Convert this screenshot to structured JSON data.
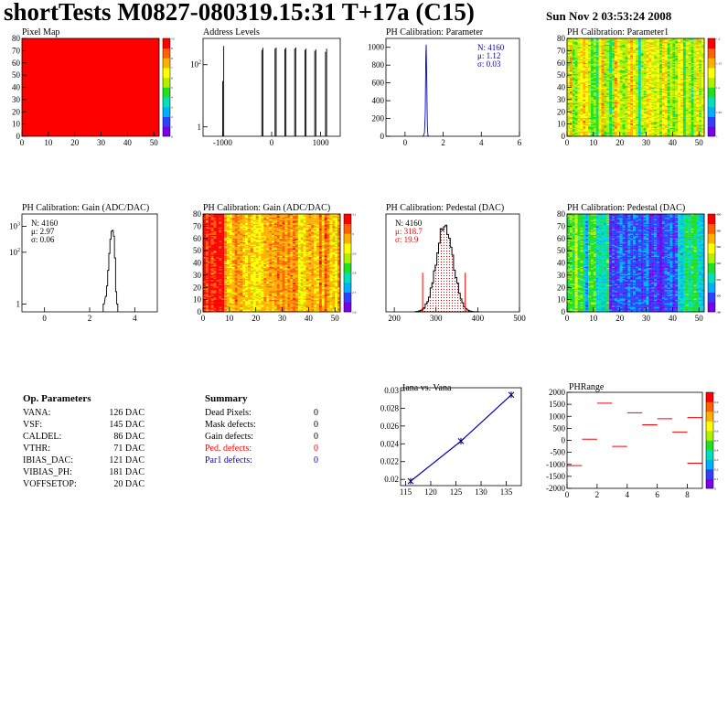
{
  "header": {
    "title": "shortTests M0827-080319.15:31 T+17a (C15)",
    "date": "Sun Nov  2 03:53:24 2008"
  },
  "colors": {
    "blue": "#0000cc",
    "red": "#ff0000",
    "palette": [
      "#7a00e8",
      "#3040ff",
      "#00b0ff",
      "#00e0c0",
      "#20e020",
      "#b0f000",
      "#ffff00",
      "#ffb000",
      "#ff6000",
      "#ff0000"
    ]
  },
  "panels": {
    "pixel_map": {
      "title": "Pixel Map",
      "xticks": [
        "0",
        "10",
        "20",
        "30",
        "40",
        "50"
      ],
      "yticks": [
        "0",
        "10",
        "20",
        "30",
        "40",
        "50",
        "60",
        "70",
        "80"
      ],
      "zticks": [
        "0",
        "1",
        "2",
        "3",
        "4",
        "5",
        "6",
        "7",
        "8",
        "9",
        "10"
      ]
    },
    "address_levels": {
      "title": "Address Levels",
      "xticks": [
        "-1000",
        "0",
        "1000"
      ],
      "yticks": [
        {
          "b": "1",
          "e": ""
        },
        {
          "b": "10",
          "e": "2"
        }
      ]
    },
    "ph_param": {
      "title": "PH Calibration: Parameter",
      "xticks": [
        "0",
        "2",
        "4",
        "6"
      ],
      "yticks": [
        "0",
        "200",
        "400",
        "600",
        "800",
        "1000"
      ],
      "stats": [
        "N: 4160",
        "μ: 1.12",
        "σ: 0.03"
      ]
    },
    "ph_param1": {
      "title": "PH Calibration: Parameter1",
      "xticks": [
        "0",
        "10",
        "20",
        "30",
        "40",
        "50"
      ],
      "yticks": [
        "0",
        "10",
        "20",
        "30",
        "40",
        "50",
        "60",
        "70",
        "80"
      ],
      "zticks": [
        "1",
        "1.05",
        "1.1",
        "1.15",
        "1.2"
      ]
    },
    "gain_hist": {
      "title": "PH Calibration: Gain (ADC/DAC)",
      "xticks": [
        "0",
        "2",
        "4"
      ],
      "yticks": [
        {
          "b": "1",
          "e": ""
        },
        {
          "b": "10",
          "e": "2"
        },
        {
          "b": "10",
          "e": "3"
        }
      ],
      "stats": [
        "N: 4160",
        "μ: 2.97",
        "σ: 0.06"
      ]
    },
    "gain_map": {
      "title": "PH Calibration: Gain (ADC/DAC)",
      "xticks": [
        "0",
        "10",
        "20",
        "30",
        "40",
        "50"
      ],
      "yticks": [
        "0",
        "10",
        "20",
        "30",
        "40",
        "50",
        "60",
        "70",
        "80"
      ],
      "zticks": [
        "2.6",
        "2.7",
        "2.8",
        "2.9",
        "3",
        "3.1"
      ]
    },
    "ped_hist": {
      "title": "PH Calibration: Pedestal (DAC)",
      "xticks": [
        "200",
        "300",
        "400",
        "500"
      ],
      "yticks": [
        "0",
        "20",
        "40",
        "60",
        "80",
        "100",
        "120",
        "140"
      ],
      "stats": [
        "N: 4160",
        "μ: 318.7",
        "σ: 19.9"
      ]
    },
    "ped_map": {
      "title": "PH Calibration: Pedestal (DAC)",
      "xticks": [
        "0",
        "10",
        "20",
        "30",
        "40",
        "50"
      ],
      "yticks": [
        "0",
        "10",
        "20",
        "30",
        "40",
        "50",
        "60",
        "70",
        "80"
      ],
      "zticks": [
        "280",
        "300",
        "320",
        "340",
        "360",
        "380",
        "400"
      ]
    },
    "iana": {
      "title": "Iana vs. Vana",
      "xticks": [
        "115",
        "120",
        "125",
        "130",
        "135"
      ],
      "yticks": [
        "0.02",
        "0.022",
        "0.024",
        "0.026",
        "0.028",
        "0.03"
      ]
    },
    "phrange": {
      "title": "PHRange",
      "xticks": [
        "0",
        "2",
        "4",
        "6",
        "8"
      ],
      "yticks": [
        "-2000",
        "-1500",
        "-1000",
        "-500",
        "0",
        "500",
        "1000",
        "1500",
        "2000"
      ],
      "zticks": [
        "0",
        "0.1",
        "0.2",
        "0.3",
        "0.4",
        "0.5",
        "0.6",
        "0.7",
        "0.8",
        "0.9",
        "1"
      ]
    }
  },
  "op_parameters": {
    "title": "Op. Parameters",
    "rows": [
      {
        "name": "VANA:",
        "value": "126 DAC"
      },
      {
        "name": "VSF:",
        "value": "145 DAC"
      },
      {
        "name": "CALDEL:",
        "value": "86 DAC"
      },
      {
        "name": "VTHR:",
        "value": "71 DAC"
      },
      {
        "name": "IBIAS_DAC:",
        "value": "121 DAC"
      },
      {
        "name": "VIBIAS_PH:",
        "value": "181 DAC"
      },
      {
        "name": "VOFFSETOP:",
        "value": "20 DAC"
      }
    ]
  },
  "summary": {
    "title": "Summary",
    "rows": [
      {
        "name": "Dead Pixels:",
        "value": "0",
        "color": "#000000"
      },
      {
        "name": "Mask defects:",
        "value": "0",
        "color": "#000000"
      },
      {
        "name": "Gain defects:",
        "value": "0",
        "color": "#000000"
      },
      {
        "name": "Ped. defects:",
        "value": "0",
        "color": "#ff0000"
      },
      {
        "name": "Par1 defects:",
        "value": "0",
        "color": "#0000cc"
      }
    ]
  },
  "chart_data": [
    {
      "id": "pixel_map",
      "type": "heatmap",
      "title": "Pixel Map",
      "xlim": [
        0,
        52
      ],
      "ylim": [
        0,
        80
      ],
      "zlim": [
        0,
        10
      ],
      "uniform_value": 10
    },
    {
      "id": "address_levels",
      "type": "bar",
      "title": "Address Levels",
      "xlim": [
        -1400,
        1400
      ],
      "ylog": true,
      "ylim": [
        0.5,
        700
      ],
      "peaks": [
        {
          "x": -1000,
          "h": [
            30,
            400
          ]
        },
        {
          "x": -200,
          "h": [
            300,
            350
          ]
        },
        {
          "x": 70,
          "h": [
            330,
            360
          ]
        },
        {
          "x": 270,
          "h": [
            320,
            350
          ]
        },
        {
          "x": 470,
          "h": [
            330,
            360
          ]
        },
        {
          "x": 680,
          "h": [
            300,
            330
          ]
        },
        {
          "x": 880,
          "h": [
            280,
            310
          ]
        },
        {
          "x": 1100,
          "h": [
            260,
            330
          ]
        }
      ]
    },
    {
      "id": "ph_param",
      "type": "bar",
      "title": "PH Calibration: Parameter",
      "xlim": [
        -1,
        6
      ],
      "ylim": [
        0,
        1100
      ],
      "mean": 1.12,
      "sigma": 0.03,
      "peak": 1030,
      "color": "#0000cc"
    },
    {
      "id": "ph_param1",
      "type": "heatmap",
      "title": "PH Calibration: Parameter1",
      "xlim": [
        0,
        52
      ],
      "ylim": [
        0,
        80
      ],
      "zlim": [
        1.0,
        1.22
      ],
      "center": 0.55
    },
    {
      "id": "gain_hist",
      "type": "bar",
      "title": "PH Calibration: Gain (ADC/DAC)",
      "xlim": [
        -1,
        5
      ],
      "ylog": true,
      "ylim": [
        0.5,
        3000
      ],
      "mean": 2.97,
      "sigma": 0.06
    },
    {
      "id": "gain_map",
      "type": "heatmap",
      "title": "PH Calibration: Gain (ADC/DAC)",
      "xlim": [
        0,
        52
      ],
      "ylim": [
        0,
        80
      ],
      "zlim": [
        2.55,
        3.1
      ],
      "center": 0.75
    },
    {
      "id": "ped_hist",
      "type": "bar",
      "title": "PH Calibration: Pedestal (DAC)",
      "xlim": [
        180,
        500
      ],
      "ylim": [
        0,
        150
      ],
      "mean": 318.7,
      "sigma": 19.9,
      "peak": 138,
      "cuts": [
        268,
        370
      ]
    },
    {
      "id": "ped_map",
      "type": "heatmap",
      "title": "PH Calibration: Pedestal (DAC)",
      "xlim": [
        0,
        52
      ],
      "ylim": [
        0,
        80
      ],
      "zlim": [
        270,
        410
      ],
      "center": 0.38
    },
    {
      "id": "iana",
      "type": "line",
      "title": "Iana vs. Vana",
      "xlabel": "",
      "ylabel": "",
      "xlim": [
        114,
        138
      ],
      "ylim": [
        0.0193,
        0.0303
      ],
      "x": [
        116,
        126,
        136
      ],
      "y": [
        0.0198,
        0.0243,
        0.0295
      ]
    },
    {
      "id": "phrange",
      "type": "scatter",
      "title": "PHRange",
      "xlim": [
        0,
        9
      ],
      "ylim": [
        -2000,
        2000
      ],
      "segments": [
        {
          "x": 0,
          "y": -1050
        },
        {
          "x": 1,
          "y": 50
        },
        {
          "x": 2,
          "y": 1550
        },
        {
          "x": 3,
          "y": -250
        },
        {
          "x": 4,
          "y": 1150
        },
        {
          "x": 5,
          "y": 650
        },
        {
          "x": 6,
          "y": 900
        },
        {
          "x": 7,
          "y": 350
        },
        {
          "x": 8,
          "y": 950
        },
        {
          "x": 8,
          "y": -950
        }
      ]
    }
  ]
}
